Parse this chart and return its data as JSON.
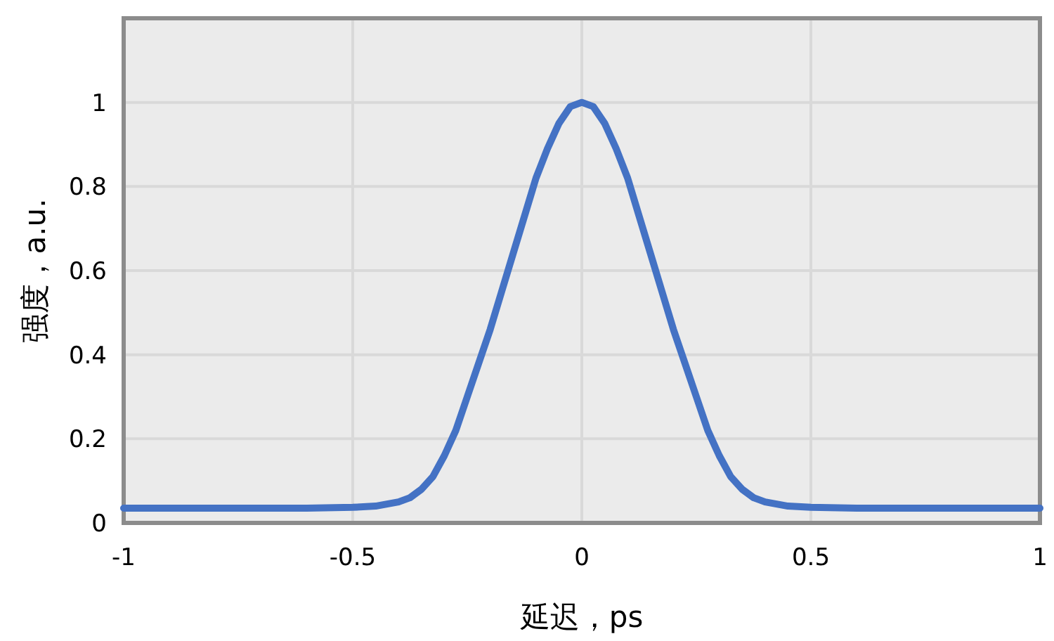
{
  "chart_data": {
    "type": "line",
    "xlabel": "延迟，ps",
    "ylabel": "强度，a.u.",
    "x": [
      -1,
      -0.8,
      -0.6,
      -0.5,
      -0.45,
      -0.4,
      -0.375,
      -0.35,
      -0.325,
      -0.3,
      -0.275,
      -0.25,
      -0.225,
      -0.2,
      -0.175,
      -0.15,
      -0.125,
      -0.1,
      -0.075,
      -0.05,
      -0.025,
      0,
      0.025,
      0.05,
      0.075,
      0.1,
      0.125,
      0.15,
      0.175,
      0.2,
      0.225,
      0.25,
      0.275,
      0.3,
      0.325,
      0.35,
      0.375,
      0.4,
      0.45,
      0.5,
      0.6,
      0.8,
      1
    ],
    "series": [
      {
        "color": "#4472c4",
        "values": [
          0.035,
          0.035,
          0.035,
          0.037,
          0.04,
          0.05,
          0.06,
          0.08,
          0.11,
          0.16,
          0.22,
          0.3,
          0.38,
          0.46,
          0.55,
          0.64,
          0.73,
          0.82,
          0.89,
          0.95,
          0.99,
          1.0,
          0.99,
          0.95,
          0.89,
          0.82,
          0.73,
          0.64,
          0.55,
          0.46,
          0.38,
          0.3,
          0.22,
          0.16,
          0.11,
          0.08,
          0.06,
          0.05,
          0.04,
          0.037,
          0.035,
          0.035,
          0.035
        ]
      }
    ],
    "xlim": [
      -1,
      1
    ],
    "xticks": [
      -1,
      -0.5,
      0,
      0.5,
      1
    ],
    "ylim": [
      0,
      1.2
    ],
    "yticks": [
      0,
      0.2,
      0.4,
      0.6,
      0.8,
      1,
      {
        "value": 1.2,
        "label": null
      }
    ],
    "grid": true,
    "marker": "none",
    "line_style": "solid"
  }
}
